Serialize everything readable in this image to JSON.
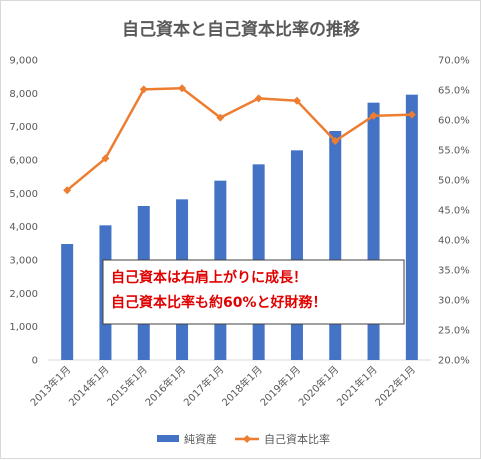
{
  "chart_data": {
    "type": "bar",
    "title": "自己資本と自己資本比率の推移",
    "categories": [
      "2013年1月",
      "2014年1月",
      "2015年1月",
      "2016年1月",
      "2017年1月",
      "2018年1月",
      "2019年1月",
      "2020年1月",
      "2021年1月",
      "2022年1月"
    ],
    "series": [
      {
        "name": "純資産",
        "type": "bar",
        "axis": "left",
        "color": "#4472c4",
        "values": [
          3480,
          4040,
          4620,
          4820,
          5380,
          5870,
          6290,
          6870,
          7720,
          7960
        ]
      },
      {
        "name": "自己資本比率",
        "type": "line",
        "axis": "right",
        "color": "#ed7d31",
        "values": [
          48.3,
          53.6,
          65.1,
          65.3,
          60.4,
          63.6,
          63.2,
          56.5,
          60.7,
          60.9
        ]
      }
    ],
    "y_left": {
      "min": 0,
      "max": 9000,
      "step": 1000,
      "tick_labels": [
        "0",
        "1,000",
        "2,000",
        "3,000",
        "4,000",
        "5,000",
        "6,000",
        "7,000",
        "8,000",
        "9,000"
      ]
    },
    "y_right": {
      "min": 20,
      "max": 70,
      "step": 5,
      "tick_labels": [
        "20.0%",
        "25.0%",
        "30.0%",
        "35.0%",
        "40.0%",
        "45.0%",
        "50.0%",
        "55.0%",
        "60.0%",
        "65.0%",
        "70.0%"
      ]
    },
    "grid": false,
    "legend_position": "bottom",
    "legend": [
      "純資産",
      "自己資本比率"
    ],
    "annotation": {
      "lines": [
        "自己資本は右肩上がりに成長！",
        "自己資本比率も約60%と好財務！"
      ]
    }
  }
}
